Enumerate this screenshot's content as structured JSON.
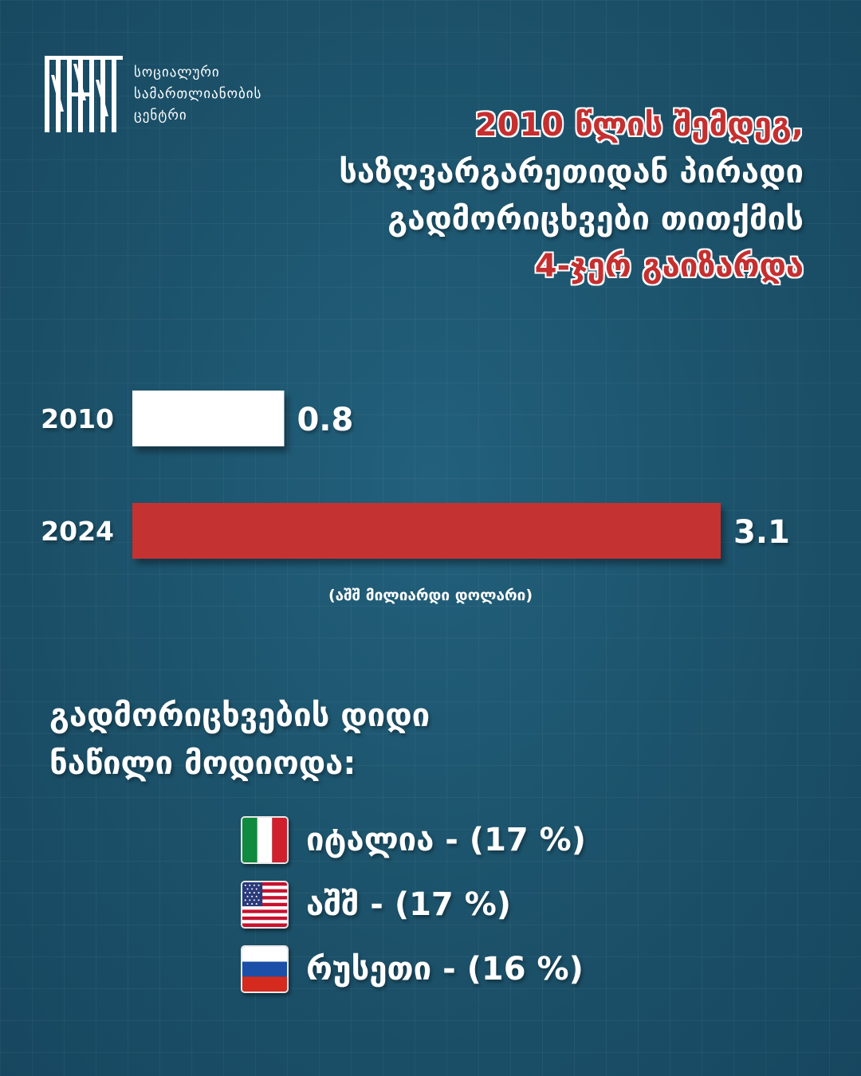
{
  "logo": {
    "lines": [
      "სოციალური",
      "სამართლიანობის",
      "ცენტრი"
    ]
  },
  "headline": {
    "line1": "2010 წლის შემდეგ,",
    "line2": "საზღვარგარეთიდან პირადი",
    "line3": "გადმორიცხვები თითქმის",
    "line4": "4-ჯერ გაიზარდა"
  },
  "chart_data": {
    "type": "bar",
    "orientation": "horizontal",
    "categories": [
      "2010",
      "2024"
    ],
    "values": [
      0.8,
      3.1
    ],
    "value_labels": [
      "0.8",
      "3.1"
    ],
    "colors": [
      "#ffffff",
      "#c53030"
    ],
    "unit_label": "(აშშ მილიარდი დოლარი)",
    "xlim": [
      0,
      3.1
    ]
  },
  "sources": {
    "heading_line1": "გადმორიცხვების დიდი",
    "heading_line2": "ნაწილი მოდიოდა:",
    "items": [
      {
        "label": "იტალია - (17 %)",
        "icon": "italy-flag-icon"
      },
      {
        "label": "აშშ - (17 %)",
        "icon": "usa-flag-icon"
      },
      {
        "label": "რუსეთი - (16 %)",
        "icon": "russia-flag-icon"
      }
    ]
  },
  "colors": {
    "background": "#1d5570",
    "accent_red": "#c53030",
    "text": "#ffffff"
  }
}
